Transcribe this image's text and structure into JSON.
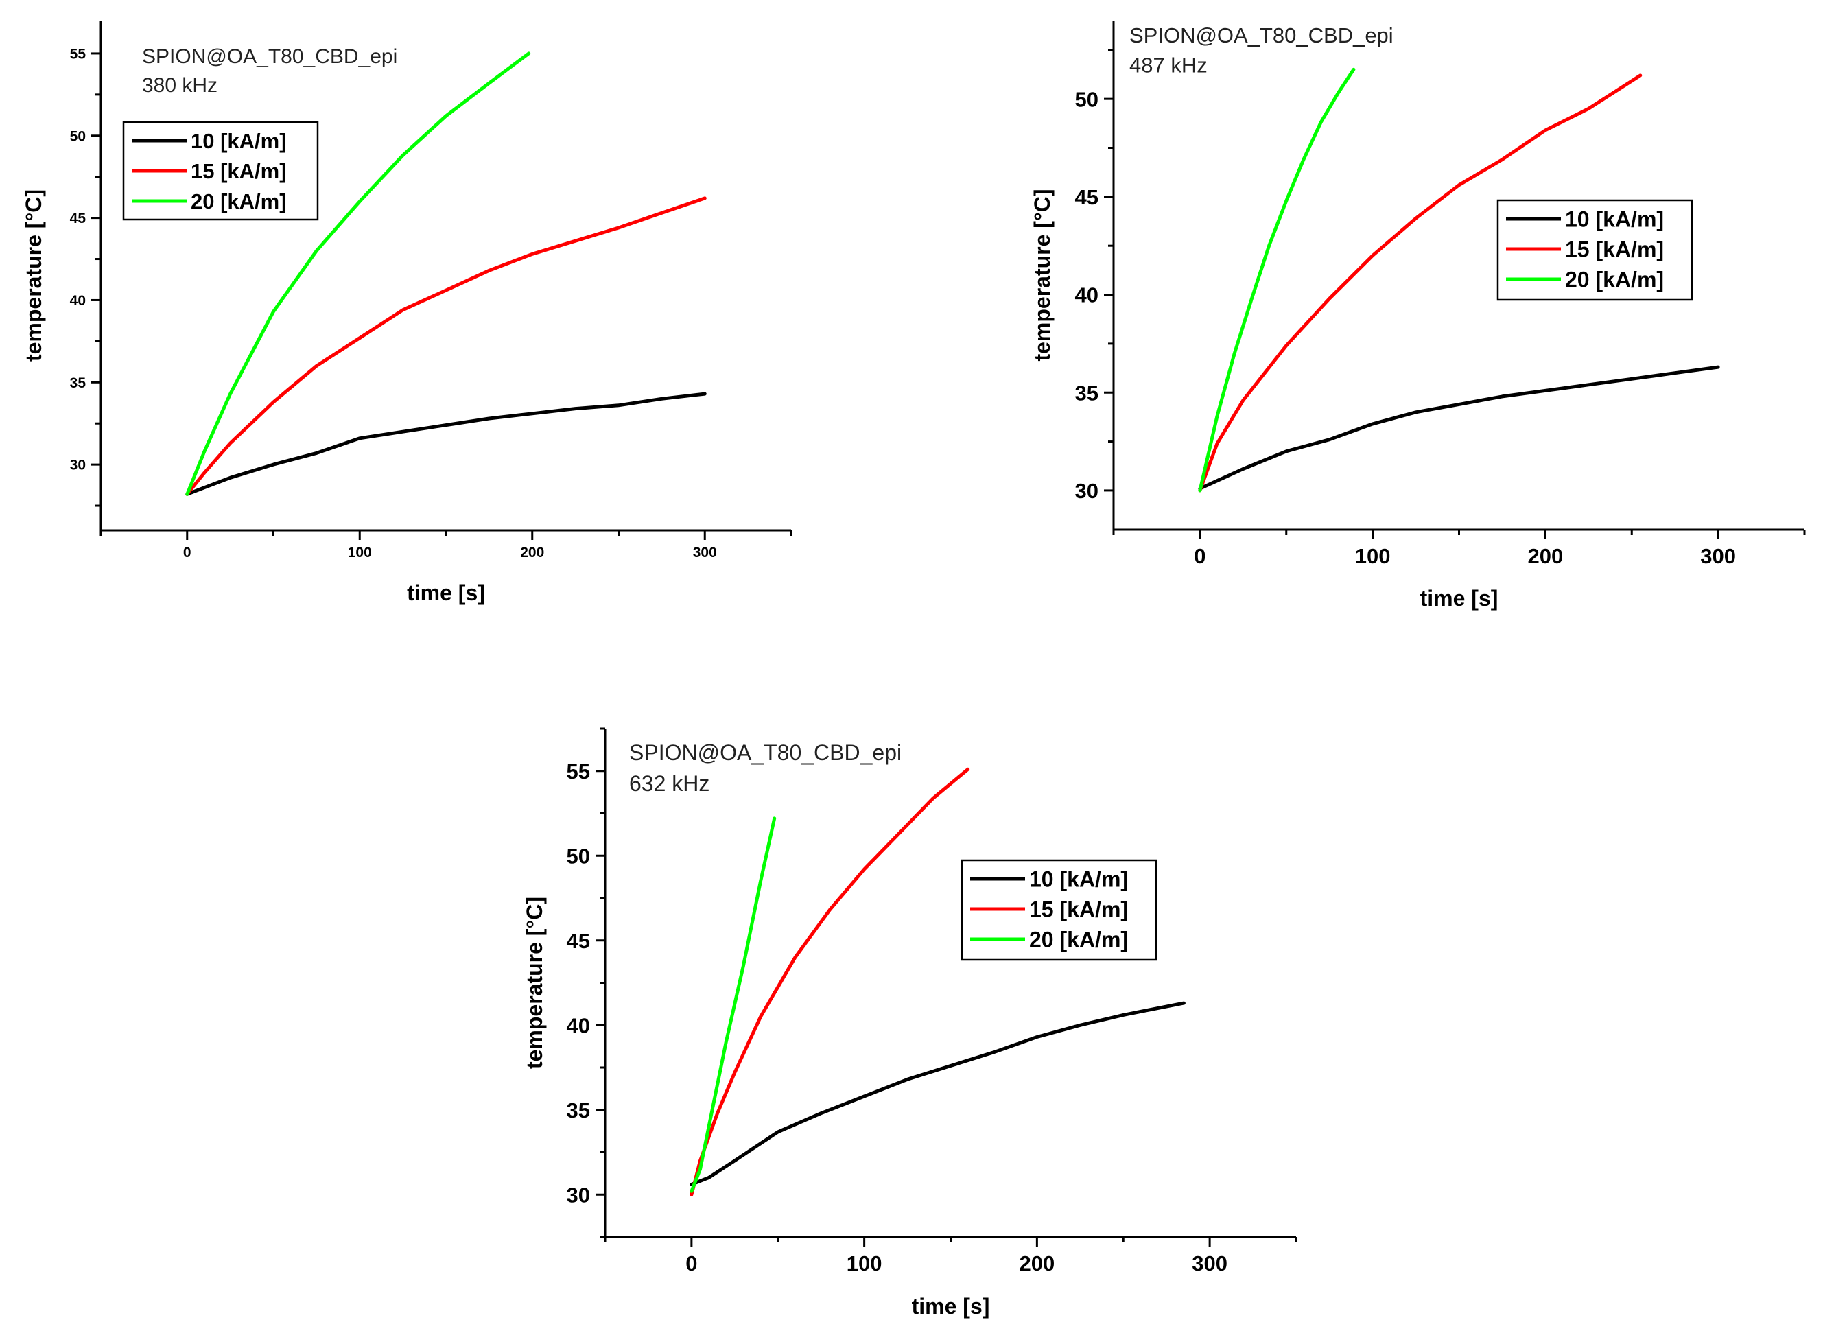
{
  "chart_data": [
    {
      "type": "line",
      "annotation": [
        "SPION@OA_T80_CBD_epi",
        "380 kHz"
      ],
      "xlabel": "time [s]",
      "ylabel": "temperature [°C]",
      "xlim": [
        -50,
        350
      ],
      "ylim": [
        26,
        57
      ],
      "xticks": [
        0,
        100,
        200,
        300
      ],
      "yticks": [
        30,
        35,
        40,
        45,
        50,
        55
      ],
      "legend_position": "top-left",
      "series": [
        {
          "name": "10 [kA/m]",
          "color": "#000000",
          "x": [
            0,
            10,
            25,
            50,
            75,
            100,
            125,
            150,
            175,
            200,
            225,
            250,
            275,
            300
          ],
          "y": [
            28.2,
            28.6,
            29.2,
            30.0,
            30.7,
            31.6,
            32.0,
            32.4,
            32.8,
            33.1,
            33.4,
            33.6,
            34.0,
            34.3
          ]
        },
        {
          "name": "15 [kA/m]",
          "color": "#ff0000",
          "x": [
            0,
            10,
            25,
            50,
            75,
            100,
            125,
            150,
            175,
            200,
            225,
            250,
            275,
            300
          ],
          "y": [
            28.2,
            29.5,
            31.3,
            33.8,
            36.0,
            37.7,
            39.4,
            40.6,
            41.8,
            42.8,
            43.6,
            44.4,
            45.3,
            46.2
          ]
        },
        {
          "name": "20 [kA/m]",
          "color": "#00ff00",
          "x": [
            0,
            10,
            25,
            50,
            75,
            100,
            125,
            150,
            175,
            198
          ],
          "y": [
            28.2,
            30.8,
            34.3,
            39.3,
            43.0,
            46.0,
            48.8,
            51.2,
            53.2,
            55.0
          ]
        }
      ]
    },
    {
      "type": "line",
      "annotation": [
        "SPION@OA_T80_CBD_epi",
        "487 kHz"
      ],
      "xlabel": "time [s]",
      "ylabel": "temperature [°C]",
      "xlim": [
        -50,
        350
      ],
      "ylim": [
        28,
        54
      ],
      "xticks": [
        0,
        100,
        200,
        300
      ],
      "yticks": [
        30,
        35,
        40,
        45,
        50
      ],
      "legend_position": "center-right",
      "series": [
        {
          "name": "10 [kA/m]",
          "color": "#000000",
          "x": [
            0,
            10,
            25,
            50,
            75,
            100,
            125,
            150,
            175,
            200,
            225,
            250,
            275,
            300
          ],
          "y": [
            30.1,
            30.5,
            31.1,
            32.0,
            32.6,
            33.4,
            34.0,
            34.4,
            34.8,
            35.1,
            35.4,
            35.7,
            36.0,
            36.3
          ]
        },
        {
          "name": "15 [kA/m]",
          "color": "#ff0000",
          "x": [
            0,
            10,
            25,
            50,
            75,
            100,
            125,
            150,
            175,
            200,
            225,
            255
          ],
          "y": [
            30.0,
            32.4,
            34.6,
            37.4,
            39.8,
            42.0,
            43.9,
            45.6,
            46.9,
            48.4,
            49.5,
            51.2
          ]
        },
        {
          "name": "20 [kA/m]",
          "color": "#00ff00",
          "x": [
            0,
            10,
            20,
            30,
            40,
            50,
            60,
            70,
            80,
            89
          ],
          "y": [
            30.0,
            33.8,
            37.0,
            39.8,
            42.5,
            44.8,
            46.9,
            48.8,
            50.3,
            51.5
          ]
        }
      ]
    },
    {
      "type": "line",
      "annotation": [
        "SPION@OA_T80_CBD_epi",
        "632 kHz"
      ],
      "xlabel": "time [s]",
      "ylabel": "temperature [°C]",
      "xlim": [
        -50,
        350
      ],
      "ylim": [
        27.5,
        57.5
      ],
      "xticks": [
        0,
        100,
        200,
        300
      ],
      "yticks": [
        30,
        35,
        40,
        45,
        50,
        55
      ],
      "legend_position": "center-right",
      "series": [
        {
          "name": "10 [kA/m]",
          "color": "#000000",
          "x": [
            0,
            10,
            25,
            50,
            75,
            100,
            125,
            150,
            175,
            200,
            225,
            250,
            285
          ],
          "y": [
            30.6,
            31.0,
            32.0,
            33.7,
            34.8,
            35.8,
            36.8,
            37.6,
            38.4,
            39.3,
            40.0,
            40.6,
            41.3
          ]
        },
        {
          "name": "15 [kA/m]",
          "color": "#ff0000",
          "x": [
            0,
            5,
            15,
            25,
            40,
            60,
            80,
            100,
            120,
            140,
            160
          ],
          "y": [
            30.0,
            32.0,
            34.8,
            37.2,
            40.5,
            44.0,
            46.8,
            49.2,
            51.3,
            53.4,
            55.1
          ]
        },
        {
          "name": "20 [kA/m]",
          "color": "#00ff00",
          "x": [
            0,
            5,
            10,
            20,
            30,
            40,
            48
          ],
          "y": [
            30.2,
            31.5,
            34.0,
            39.0,
            43.5,
            48.5,
            52.2
          ]
        }
      ]
    }
  ]
}
